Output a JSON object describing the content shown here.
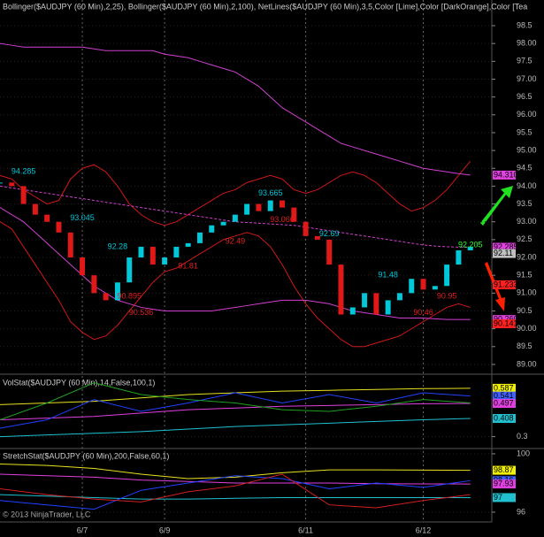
{
  "chart_data": [
    {
      "type": "candlestick",
      "title": "Bollinger($AUDJPY (60 Min),2,25), Bollinger($AUDJPY (60 Min),2,100), NetLines($AUDJPY (60 Min),3,5,Color [Lime],Color [DarkOrange],Color [Tea",
      "categories": [
        null,
        null,
        null,
        null,
        null,
        null,
        null,
        "6/7",
        null,
        null,
        null,
        null,
        null,
        null,
        "6/9",
        null,
        null,
        null,
        null,
        null,
        null,
        null,
        null,
        null,
        null,
        null,
        "6/11",
        null,
        null,
        null,
        null,
        null,
        null,
        null,
        null,
        null,
        "6/12",
        null,
        null,
        null,
        null
      ],
      "xlim": [
        0,
        41
      ],
      "values": [
        94.1,
        94.0,
        93.5,
        93.2,
        93.0,
        92.7,
        92.0,
        91.5,
        91.0,
        90.8,
        91.3,
        92.0,
        92.3,
        91.8,
        92.0,
        92.3,
        92.4,
        92.7,
        92.9,
        93.0,
        93.2,
        93.5,
        93.3,
        93.6,
        93.4,
        93.0,
        92.6,
        92.5,
        91.8,
        90.4,
        90.6,
        91.0,
        90.4,
        90.8,
        91.0,
        91.4,
        91.1,
        91.2,
        91.8,
        92.2,
        92.3
      ],
      "up_color": "#00c8d8",
      "down_color": "#e01818",
      "series": [
        {
          "color": "#d01818",
          "values": [
            94.3,
            94.2,
            93.9,
            93.7,
            93.5,
            93.6,
            94.2,
            94.5,
            94.6,
            94.4,
            94.0,
            93.5,
            93.2,
            93.0,
            92.9,
            93.0,
            93.2,
            93.4,
            93.6,
            93.8,
            93.9,
            94.1,
            94.2,
            94.3,
            94.2,
            93.9,
            93.8,
            93.9,
            94.1,
            94.3,
            94.4,
            94.3,
            94.1,
            93.8,
            93.5,
            93.3,
            93.4,
            93.6,
            93.9,
            94.3,
            94.7
          ]
        },
        {
          "color": "#d01818",
          "values": [
            93.0,
            92.8,
            92.3,
            91.8,
            91.3,
            90.8,
            90.2,
            89.9,
            89.7,
            89.8,
            90.1,
            90.5,
            90.9,
            91.3,
            91.6,
            91.7,
            91.9,
            92.1,
            92.3,
            92.5,
            92.6,
            92.7,
            92.6,
            92.3,
            91.8,
            91.2,
            90.7,
            90.3,
            90.0,
            89.7,
            89.5,
            89.5,
            89.6,
            89.7,
            89.8,
            90.0,
            90.2,
            90.4,
            90.6,
            90.7,
            90.6
          ]
        },
        {
          "color": "#d040d0",
          "values": [
            98.0,
            97.95,
            97.9,
            97.9,
            97.9,
            97.9,
            97.9,
            97.9,
            97.85,
            97.8,
            97.8,
            97.8,
            97.8,
            97.8,
            97.7,
            97.65,
            97.6,
            97.5,
            97.4,
            97.3,
            97.2,
            97.0,
            96.8,
            96.5,
            96.2,
            96.0,
            95.8,
            95.6,
            95.4,
            95.2,
            95.1,
            95.0,
            94.9,
            94.8,
            94.7,
            94.6,
            94.5,
            94.45,
            94.4,
            94.35,
            94.31
          ]
        },
        {
          "color": "#d040d0",
          "dashed": true,
          "values": [
            94.0,
            93.95,
            93.9,
            93.85,
            93.8,
            93.75,
            93.7,
            93.65,
            93.6,
            93.55,
            93.5,
            93.45,
            93.4,
            93.35,
            93.3,
            93.25,
            93.2,
            93.15,
            93.1,
            93.05,
            93.0,
            92.98,
            92.96,
            92.94,
            92.92,
            92.9,
            92.85,
            92.8,
            92.75,
            92.7,
            92.65,
            92.6,
            92.55,
            92.5,
            92.45,
            92.4,
            92.35,
            92.32,
            92.3,
            92.29,
            92.285
          ]
        },
        {
          "color": "#d040d0",
          "values": [
            93.4,
            93.2,
            93.0,
            92.7,
            92.4,
            92.1,
            91.8,
            91.5,
            91.2,
            91.0,
            90.8,
            90.7,
            90.6,
            90.55,
            90.5,
            90.5,
            90.5,
            90.5,
            90.5,
            90.55,
            90.6,
            90.65,
            90.7,
            90.75,
            90.8,
            90.8,
            90.8,
            90.75,
            90.7,
            90.6,
            90.5,
            90.45,
            90.4,
            90.35,
            90.3,
            90.3,
            90.3,
            90.28,
            90.26,
            90.26,
            90.26
          ]
        }
      ],
      "annotations": [
        {
          "text": "94.285",
          "x": 2,
          "y": 94.4,
          "color": "#00c8d8"
        },
        {
          "text": "93.045",
          "x": 7,
          "y": 93.1,
          "color": "#00c8d8"
        },
        {
          "text": "92.28",
          "x": 10,
          "y": 92.3,
          "color": "#00c8d8"
        },
        {
          "text": "90.895",
          "x": 11,
          "y": 90.9,
          "color": "#e02020"
        },
        {
          "text": "90.536",
          "x": 12,
          "y": 90.45,
          "color": "#e02020"
        },
        {
          "text": "91.81",
          "x": 16,
          "y": 91.75,
          "color": "#e02020"
        },
        {
          "text": "92.49",
          "x": 20,
          "y": 92.45,
          "color": "#e02020"
        },
        {
          "text": "93.665",
          "x": 23,
          "y": 93.8,
          "color": "#00c8d8"
        },
        {
          "text": "93.066",
          "x": 24,
          "y": 93.05,
          "color": "#e02020"
        },
        {
          "text": "92.69",
          "x": 28,
          "y": 92.65,
          "color": "#00c8d8"
        },
        {
          "text": "91.48",
          "x": 33,
          "y": 91.5,
          "color": "#00c8d8"
        },
        {
          "text": "90.46",
          "x": 36,
          "y": 90.45,
          "color": "#e02020"
        },
        {
          "text": "90.95",
          "x": 38,
          "y": 90.9,
          "color": "#e02020"
        },
        {
          "text": "92.205",
          "x": 40,
          "y": 92.35,
          "color": "#30ff30"
        }
      ],
      "ylim": [
        88.8,
        99.22
      ],
      "yticks": [
        {
          "value": 89,
          "label": "89.00"
        },
        89.5,
        {
          "value": 90,
          "label": "90.00"
        },
        90.5,
        {
          "value": 91,
          "label": "91.00"
        },
        91.5,
        {
          "value": 92,
          "label": "92.00"
        },
        92.5,
        {
          "value": 93,
          "label": "93.00"
        },
        93.5,
        {
          "value": 94,
          "label": "94.00"
        },
        94.5,
        {
          "value": 95,
          "label": "95.00"
        },
        95.5,
        {
          "value": 96,
          "label": "96.00"
        },
        96.5,
        {
          "value": 97,
          "label": "97.00"
        },
        97.5,
        {
          "value": 98,
          "label": "98.00"
        },
        98.5
      ],
      "price_labels": [
        {
          "value": 94.31,
          "label": "94.310",
          "color": "#e040e0"
        },
        {
          "value": 92.285,
          "label": "92.285",
          "color": "#e040e0"
        },
        {
          "value": 92.11,
          "label": "92.11",
          "color": "#c0c0c0"
        },
        {
          "value": 91.233,
          "label": "91.233",
          "color": "#ff2020"
        },
        {
          "value": 90.26,
          "label": "90.260",
          "color": "#e040e0"
        },
        {
          "value": 90.141,
          "label": "90.141",
          "color": "#ff2020"
        }
      ]
    },
    {
      "type": "line",
      "title": "VolStat($AUDJPY (60 Min),14,False,100,1)",
      "x": [
        0,
        4,
        8,
        12,
        16,
        20,
        24,
        28,
        32,
        36,
        40
      ],
      "xlim": [
        0,
        41
      ],
      "series": [
        {
          "color": "#e8e020",
          "values": [
            0.49,
            0.5,
            0.51,
            0.53,
            0.55,
            0.56,
            0.57,
            0.575,
            0.58,
            0.585,
            0.587
          ]
        },
        {
          "color": "#e040e0",
          "values": [
            0.4,
            0.41,
            0.42,
            0.44,
            0.46,
            0.47,
            0.48,
            0.485,
            0.49,
            0.495,
            0.497
          ]
        },
        {
          "color": "#20c0d0",
          "values": [
            0.3,
            0.31,
            0.32,
            0.33,
            0.345,
            0.36,
            0.37,
            0.38,
            0.39,
            0.4,
            0.408
          ]
        },
        {
          "color": "#2040ff",
          "values": [
            0.35,
            0.4,
            0.52,
            0.45,
            0.5,
            0.56,
            0.5,
            0.55,
            0.5,
            0.56,
            0.541
          ]
        },
        {
          "color": "#20a020",
          "values": [
            0.4,
            0.5,
            0.62,
            0.55,
            0.52,
            0.5,
            0.46,
            0.45,
            0.48,
            0.52,
            0.5
          ]
        }
      ],
      "ylim": [
        0.24,
        0.66
      ],
      "yticks": [
        0.3
      ],
      "price_labels": [
        {
          "value": 0.587,
          "label": "0.587",
          "color": "#f0f000"
        },
        {
          "value": 0.541,
          "label": "0.541",
          "color": "#4060ff"
        },
        {
          "value": 0.497,
          "label": "0.497",
          "color": "#e040e0"
        },
        {
          "value": 0.408,
          "label": "0.408",
          "color": "#20c0d0"
        }
      ]
    },
    {
      "type": "line",
      "title": "StretchStat($AUDJPY (60 Min),200,False,60,1)",
      "x": [
        0,
        4,
        8,
        12,
        16,
        20,
        24,
        28,
        32,
        36,
        40
      ],
      "xlim": [
        0,
        41
      ],
      "series": [
        {
          "color": "#e8e020",
          "values": [
            99.3,
            99.2,
            99.0,
            98.6,
            98.3,
            98.4,
            98.7,
            98.9,
            98.9,
            98.88,
            98.87
          ]
        },
        {
          "color": "#e040e0",
          "values": [
            98.6,
            98.5,
            98.4,
            98.2,
            98.1,
            98.0,
            98.0,
            98.0,
            97.95,
            97.94,
            97.93
          ]
        },
        {
          "color": "#20c0d0",
          "values": [
            97.2,
            97.1,
            97.0,
            96.9,
            96.9,
            96.95,
            97.0,
            97.0,
            97.0,
            97.0,
            97.0
          ]
        },
        {
          "color": "#2040ff",
          "values": [
            96.8,
            96.5,
            96.2,
            97.5,
            98.0,
            98.5,
            98.3,
            97.6,
            98.0,
            97.7,
            98.16
          ]
        },
        {
          "color": "#d02020",
          "values": [
            97.6,
            97.2,
            96.9,
            96.7,
            97.4,
            97.8,
            98.6,
            96.5,
            96.3,
            96.8,
            97.2
          ]
        }
      ],
      "ylim": [
        95.33,
        100.3
      ],
      "yticks": [
        96,
        100
      ],
      "price_labels": [
        {
          "value": 98.87,
          "label": "98.87",
          "color": "#f0f000"
        },
        {
          "value": 98.16,
          "label": "98.16",
          "color": "#4060ff"
        },
        {
          "value": 97.93,
          "label": "97.93",
          "color": "#e040e0"
        },
        {
          "value": 97,
          "label": "97",
          "color": "#20c0d0"
        }
      ]
    }
  ],
  "footer": "© 2013 NinjaTrader, LLC"
}
